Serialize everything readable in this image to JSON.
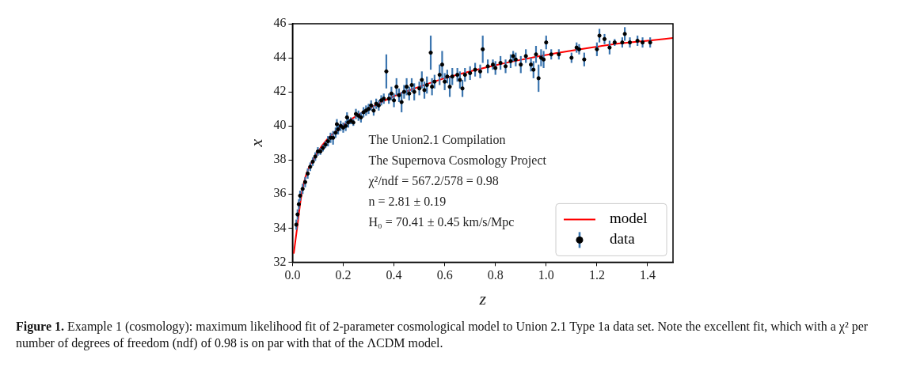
{
  "chart_data": {
    "type": "scatter",
    "xlabel": "z",
    "ylabel": "x",
    "xlim": [
      0,
      1.5
    ],
    "ylim": [
      32,
      46
    ],
    "xticks": [
      {
        "value": 0,
        "label": "0.0"
      },
      0.2,
      0.4,
      0.6,
      0.8,
      {
        "value": 1,
        "label": "1.0"
      },
      1.2,
      1.4
    ],
    "yticks": [
      32,
      34,
      36,
      38,
      40,
      42,
      44,
      46
    ],
    "grid": false,
    "legend": "bottom right",
    "marker": "circle",
    "annotations": [
      "The Union2.1 Compilation",
      "The Supernova Cosmology Project",
      "χ²/ndf = 567.2/578 = 0.98",
      "n = 2.81 ± 0.19",
      "H₀ = 70.41 ± 0.45 km/s/Mpc",
      "Figure 1.",
      "Example 1 (cosmology): maximum likelihood fit of 2-parameter cosmological model to Union 2.1 Type 1a data set. Note the excellent fit, which with a χ² per number of degrees of freedom (ndf) of 0.98 is on par with that of the ΛCDM model."
    ],
    "series": [
      {
        "name": "model",
        "type": "line",
        "color": "#ff0000",
        "marker": "none",
        "x": [
          0.005,
          0.016,
          0.039,
          0.097,
          0.198,
          0.3,
          0.399,
          0.5,
          0.6,
          0.7,
          0.8,
          0.9,
          1.0,
          1.1,
          1.19,
          1.3,
          1.4,
          1.5
        ],
        "values": [
          32.5,
          33.75,
          36.26,
          38.39,
          40.02,
          41.0,
          41.74,
          42.3,
          42.8,
          43.2,
          43.56,
          43.88,
          44.17,
          44.42,
          44.63,
          44.86,
          45.0,
          45.16
        ]
      },
      {
        "name": "data",
        "color": "#000000",
        "x": [
          0.015,
          0.02,
          0.025,
          0.03,
          0.04,
          0.05,
          0.06,
          0.07,
          0.08,
          0.09,
          0.1,
          0.11,
          0.12,
          0.13,
          0.14,
          0.15,
          0.16,
          0.17,
          0.175,
          0.18,
          0.19,
          0.2,
          0.21,
          0.215,
          0.22,
          0.23,
          0.24,
          0.25,
          0.26,
          0.27,
          0.28,
          0.29,
          0.3,
          0.31,
          0.32,
          0.33,
          0.34,
          0.35,
          0.36,
          0.37,
          0.38,
          0.39,
          0.4,
          0.41,
          0.42,
          0.43,
          0.44,
          0.45,
          0.46,
          0.47,
          0.48,
          0.5,
          0.51,
          0.52,
          0.53,
          0.545,
          0.55,
          0.56,
          0.58,
          0.59,
          0.6,
          0.61,
          0.62,
          0.63,
          0.65,
          0.66,
          0.67,
          0.68,
          0.7,
          0.72,
          0.74,
          0.75,
          0.77,
          0.79,
          0.8,
          0.82,
          0.84,
          0.86,
          0.87,
          0.88,
          0.9,
          0.92,
          0.94,
          0.95,
          0.96,
          0.97,
          0.98,
          0.99,
          1.0,
          1.02,
          1.05,
          1.1,
          1.12,
          1.13,
          1.15,
          1.2,
          1.21,
          1.23,
          1.25,
          1.27,
          1.3,
          1.31,
          1.33,
          1.36,
          1.38,
          1.41
        ],
        "values": [
          34.2,
          34.8,
          35.4,
          35.9,
          36.3,
          36.7,
          37.2,
          37.6,
          37.9,
          38.2,
          38.5,
          38.5,
          38.7,
          38.9,
          39.1,
          39.3,
          39.3,
          39.6,
          40.1,
          39.8,
          40.0,
          39.9,
          40.0,
          40.5,
          40.2,
          40.3,
          40.2,
          40.7,
          40.6,
          40.5,
          40.8,
          40.9,
          41.0,
          41.2,
          40.9,
          41.3,
          41.2,
          41.5,
          41.6,
          43.2,
          41.6,
          41.9,
          41.5,
          42.3,
          41.8,
          41.4,
          42.0,
          42.3,
          41.9,
          42.4,
          42.0,
          42.2,
          42.7,
          42.1,
          42.4,
          44.3,
          42.3,
          42.6,
          43.0,
          43.6,
          42.6,
          42.9,
          42.3,
          42.9,
          43.0,
          42.7,
          42.2,
          43.0,
          43.1,
          43.3,
          43.2,
          44.5,
          43.5,
          43.6,
          43.4,
          43.7,
          43.5,
          43.8,
          44.1,
          43.9,
          43.6,
          44.1,
          43.6,
          43.3,
          44.2,
          42.8,
          44.0,
          43.9,
          44.9,
          44.2,
          44.2,
          44.0,
          44.6,
          44.5,
          43.9,
          44.5,
          45.3,
          45.1,
          44.6,
          44.9,
          44.9,
          45.4,
          44.9,
          45.0,
          44.9,
          44.9
        ],
        "errors": [
          0.3,
          0.3,
          0.3,
          0.3,
          0.3,
          0.3,
          0.3,
          0.25,
          0.25,
          0.25,
          0.25,
          0.2,
          0.2,
          0.2,
          0.3,
          0.3,
          0.4,
          0.3,
          0.3,
          0.3,
          0.3,
          0.3,
          0.3,
          0.3,
          0.3,
          0.2,
          0.2,
          0.3,
          0.3,
          0.3,
          0.3,
          0.3,
          0.3,
          0.3,
          0.3,
          0.3,
          0.3,
          0.3,
          0.3,
          1.0,
          0.3,
          0.4,
          0.4,
          0.5,
          0.4,
          0.6,
          0.4,
          0.5,
          0.4,
          0.4,
          0.5,
          0.4,
          0.5,
          0.5,
          0.5,
          1.0,
          0.5,
          0.4,
          0.6,
          0.8,
          0.5,
          0.4,
          0.6,
          0.5,
          0.4,
          0.5,
          0.5,
          0.4,
          0.4,
          0.4,
          0.4,
          0.8,
          0.4,
          0.3,
          0.4,
          0.4,
          0.4,
          0.4,
          0.3,
          0.4,
          0.5,
          0.4,
          0.4,
          0.5,
          0.5,
          0.8,
          0.5,
          0.5,
          0.4,
          0.3,
          0.3,
          0.3,
          0.3,
          0.3,
          0.4,
          0.4,
          0.4,
          0.3,
          0.4,
          0.2,
          0.3,
          0.4,
          0.3,
          0.3,
          0.3,
          0.3
        ]
      }
    ]
  }
}
